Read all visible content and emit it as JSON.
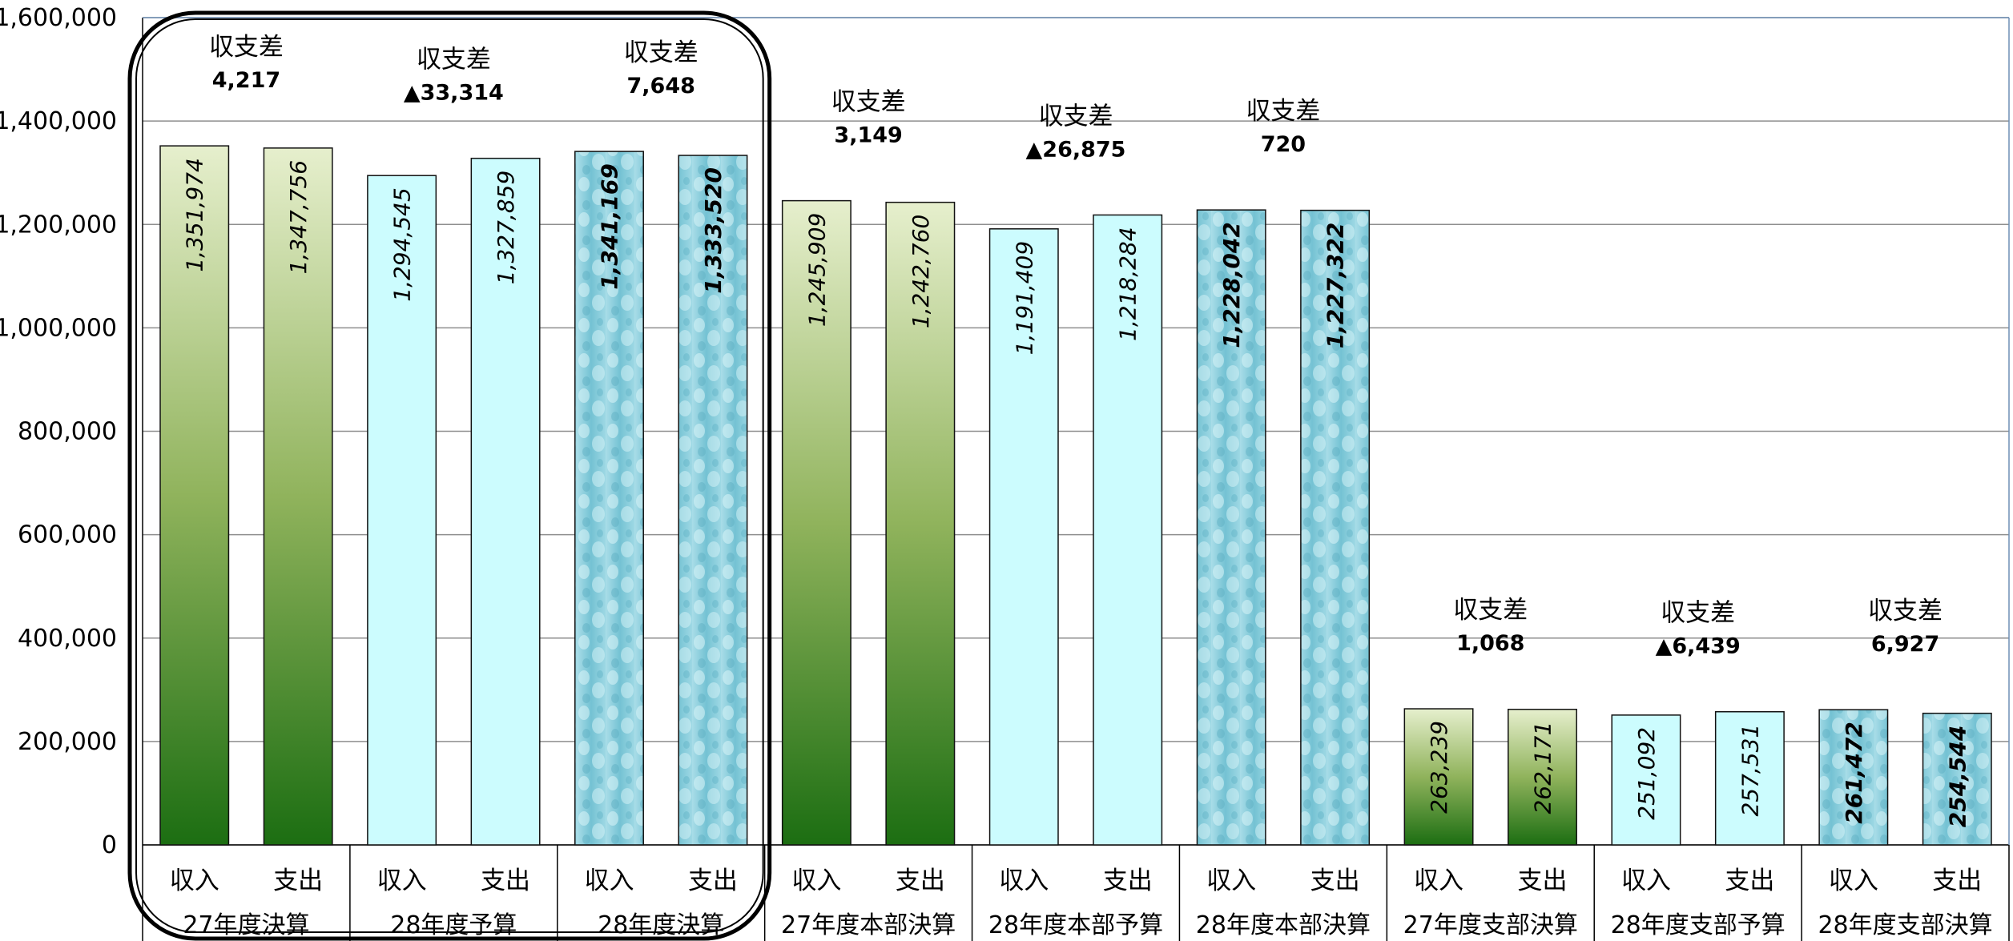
{
  "chart_data": {
    "type": "bar",
    "ylim": [
      0,
      1600000
    ],
    "y_ticks": [
      "0",
      "200,000",
      "400,000",
      "600,000",
      "800,000",
      "1,000,000",
      "1,200,000",
      "1,400,000",
      "1,600,000"
    ],
    "grid": "horizontal",
    "colors": {
      "decision": "#2e7d1e",
      "budget": "#ccfcfe",
      "decision28": "#7fc9d8",
      "grid": "#8e8e8e"
    },
    "groups": [
      {
        "name": "27年度決算",
        "style": "decision",
        "bars": [
          {
            "label": "収入",
            "value": 1351974,
            "text": "1,351,974"
          },
          {
            "label": "支出",
            "value": 1347756,
            "text": "1,347,756"
          }
        ],
        "diff_label": "収支差",
        "diff": "4,217"
      },
      {
        "name": "28年度予算",
        "style": "budget",
        "bars": [
          {
            "label": "収入",
            "value": 1294545,
            "text": "1,294,545"
          },
          {
            "label": "支出",
            "value": 1327859,
            "text": "1,327,859"
          }
        ],
        "diff_label": "収支差",
        "diff": "▲33,314"
      },
      {
        "name": "28年度決算",
        "style": "decision28",
        "bars": [
          {
            "label": "収入",
            "value": 1341169,
            "text": "1,341,169"
          },
          {
            "label": "支出",
            "value": 1333520,
            "text": "1,333,520"
          }
        ],
        "diff_label": "収支差",
        "diff": "7,648"
      },
      {
        "name": "27年度本部決算",
        "style": "decision",
        "bars": [
          {
            "label": "収入",
            "value": 1245909,
            "text": "1,245,909"
          },
          {
            "label": "支出",
            "value": 1242760,
            "text": "1,242,760"
          }
        ],
        "diff_label": "収支差",
        "diff": "3,149"
      },
      {
        "name": "28年度本部予算",
        "style": "budget",
        "bars": [
          {
            "label": "収入",
            "value": 1191409,
            "text": "1,191,409"
          },
          {
            "label": "支出",
            "value": 1218284,
            "text": "1,218,284"
          }
        ],
        "diff_label": "収支差",
        "diff": "▲26,875"
      },
      {
        "name": "28年度本部決算",
        "style": "decision28",
        "bars": [
          {
            "label": "収入",
            "value": 1228042,
            "text": "1,228,042"
          },
          {
            "label": "支出",
            "value": 1227322,
            "text": "1,227,322"
          }
        ],
        "diff_label": "収支差",
        "diff": "720"
      },
      {
        "name": "27年度支部決算",
        "style": "decision",
        "bars": [
          {
            "label": "収入",
            "value": 263239,
            "text": "263,239"
          },
          {
            "label": "支出",
            "value": 262171,
            "text": "262,171"
          }
        ],
        "diff_label": "収支差",
        "diff": "1,068"
      },
      {
        "name": "28年度支部予算",
        "style": "budget",
        "bars": [
          {
            "label": "収入",
            "value": 251092,
            "text": "251,092"
          },
          {
            "label": "支出",
            "value": 257531,
            "text": "257,531"
          }
        ],
        "diff_label": "収支差",
        "diff": "▲6,439"
      },
      {
        "name": "28年度支部決算",
        "style": "decision28",
        "bars": [
          {
            "label": "収入",
            "value": 261472,
            "text": "261,472"
          },
          {
            "label": "支出",
            "value": 254544,
            "text": "254,544"
          }
        ],
        "diff_label": "収支差",
        "diff": "6,927"
      }
    ],
    "highlight": {
      "from_group": 0,
      "to_group": 2
    }
  }
}
